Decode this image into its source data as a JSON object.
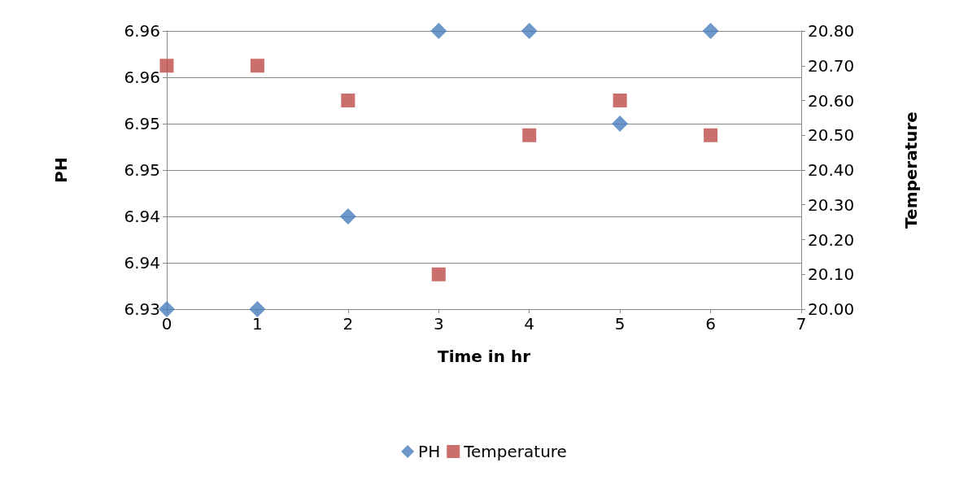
{
  "chart_data": {
    "type": "scatter",
    "xlabel": "Time in hr",
    "ylabel": "PH",
    "y2label": "Temperature",
    "x": [
      0,
      1,
      2,
      3,
      4,
      5,
      6
    ],
    "series": [
      {
        "name": "PH",
        "color": "#4a7ebb",
        "marker": "diamond",
        "values": [
          6.93,
          6.93,
          6.94,
          6.96,
          6.96,
          6.95,
          6.96
        ]
      },
      {
        "name": "Temperature",
        "color": "#be4b48",
        "marker": "square",
        "axis": "y2",
        "values": [
          20.7,
          20.7,
          20.6,
          20.1,
          20.5,
          20.6,
          20.5
        ]
      }
    ],
    "xlim": [
      0,
      7
    ],
    "xticks": [
      0,
      1,
      2,
      3,
      4,
      5,
      6,
      7
    ],
    "ylim": [
      6.93,
      6.96
    ],
    "yticks": [
      {
        "value": 6.93,
        "label": "6.93"
      },
      {
        "value": 6.935,
        "label": "6.94"
      },
      {
        "value": 6.94,
        "label": "6.94"
      },
      {
        "value": 6.945,
        "label": "6.95"
      },
      {
        "value": 6.95,
        "label": "6.95"
      },
      {
        "value": 6.955,
        "label": "6.96"
      },
      {
        "value": 6.96,
        "label": "6.96"
      }
    ],
    "y2lim": [
      20,
      20.8
    ],
    "y2ticks": [
      {
        "value": 20,
        "label": "20.00"
      },
      {
        "value": 20.1,
        "label": "20.10"
      },
      {
        "value": 20.2,
        "label": "20.20"
      },
      {
        "value": 20.3,
        "label": "20.30"
      },
      {
        "value": 20.4,
        "label": "20.40"
      },
      {
        "value": 20.5,
        "label": "20.50"
      },
      {
        "value": 20.6,
        "label": "20.60"
      },
      {
        "value": 20.7,
        "label": "20.70"
      },
      {
        "value": 20.8,
        "label": "20.80"
      }
    ],
    "grid": "y",
    "legend": "bottom"
  }
}
